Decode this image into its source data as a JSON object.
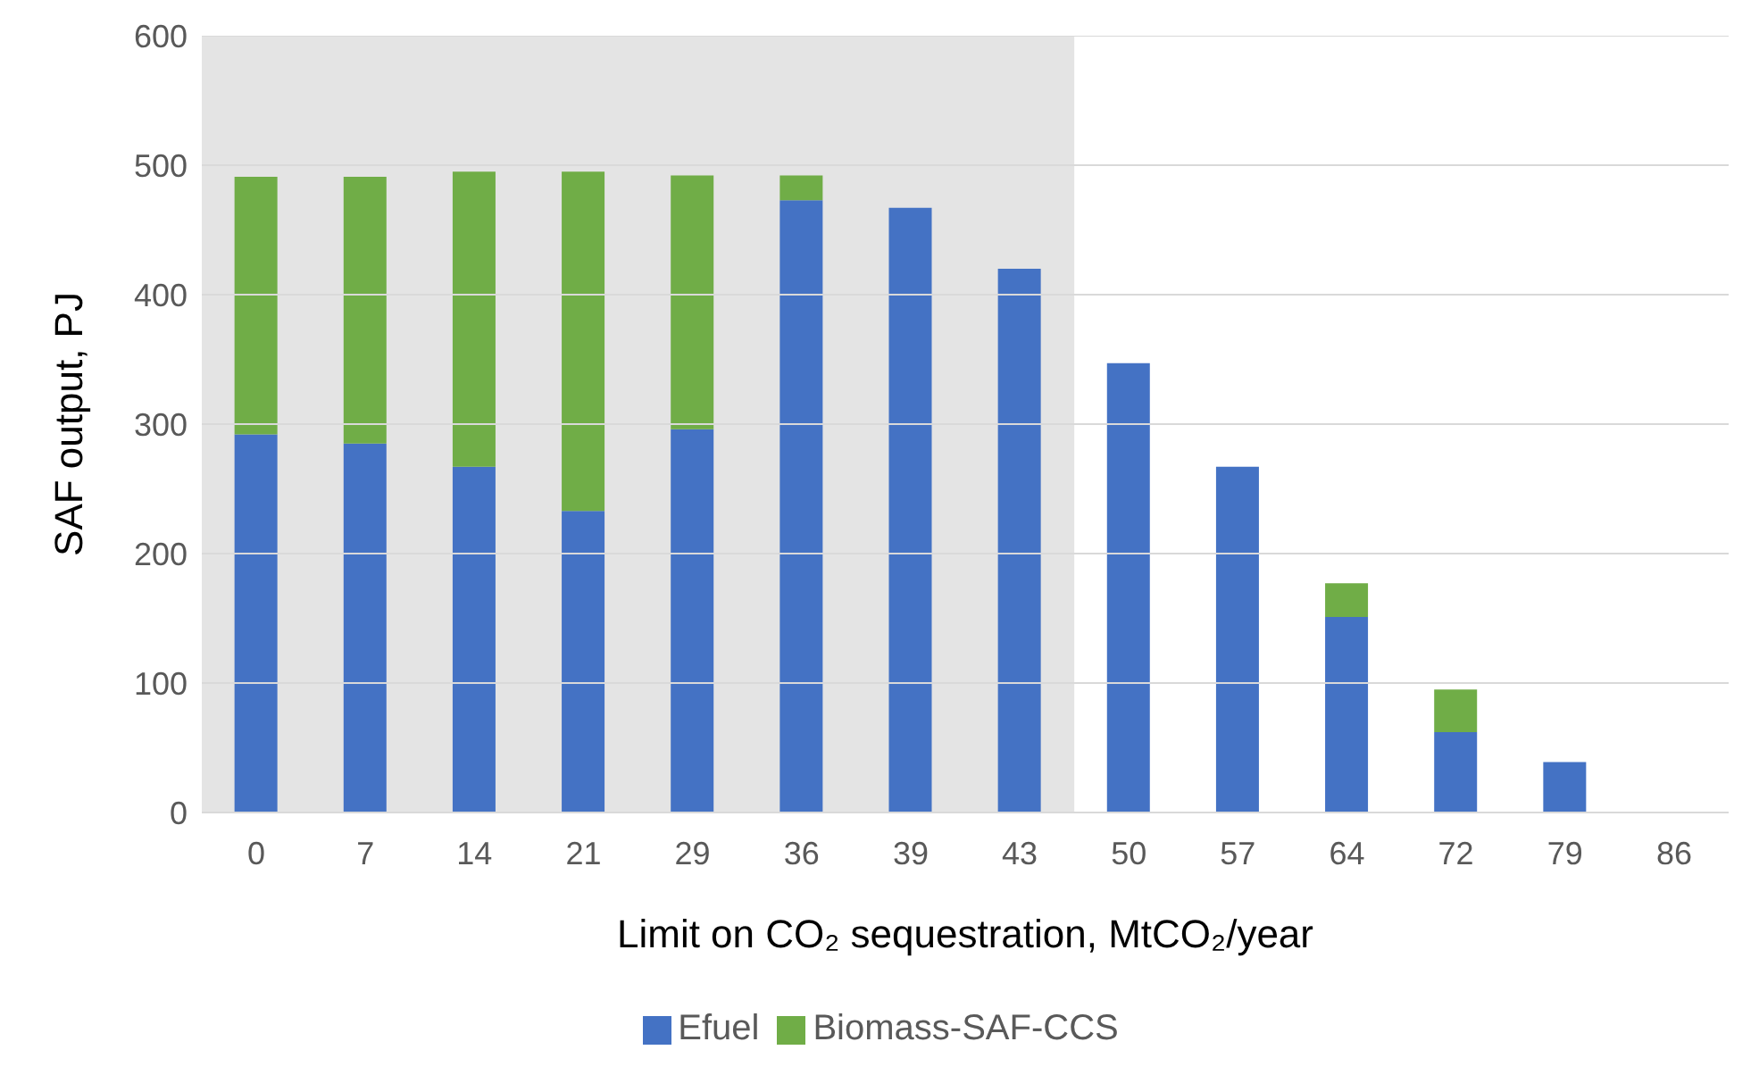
{
  "chart_data": {
    "type": "bar",
    "stacked": true,
    "xlabel": "Limit on CO₂ sequestration, MtCO₂/year",
    "ylabel": "SAF output, PJ",
    "categories": [
      "0",
      "7",
      "14",
      "21",
      "29",
      "36",
      "39",
      "43",
      "50",
      "57",
      "64",
      "72",
      "79",
      "86"
    ],
    "series": [
      {
        "name": "Efuel",
        "color": "#4472c4",
        "values": [
          292,
          285,
          267,
          233,
          296,
          473,
          467,
          420,
          347,
          267,
          151,
          62,
          39,
          0
        ]
      },
      {
        "name": "Biomass-SAF-CCS",
        "color": "#70ad47",
        "values": [
          199,
          206,
          228,
          262,
          196,
          19,
          0,
          0,
          0,
          0,
          26,
          33,
          0,
          0
        ]
      }
    ],
    "ylim": [
      0,
      600
    ],
    "yticks": [
      0,
      100,
      200,
      300,
      400,
      500,
      600
    ],
    "grid": "y",
    "legend": "bottom",
    "bands": [
      {
        "axis": "x",
        "from": "0",
        "to": "43",
        "color": "#e4e4e4"
      }
    ]
  }
}
